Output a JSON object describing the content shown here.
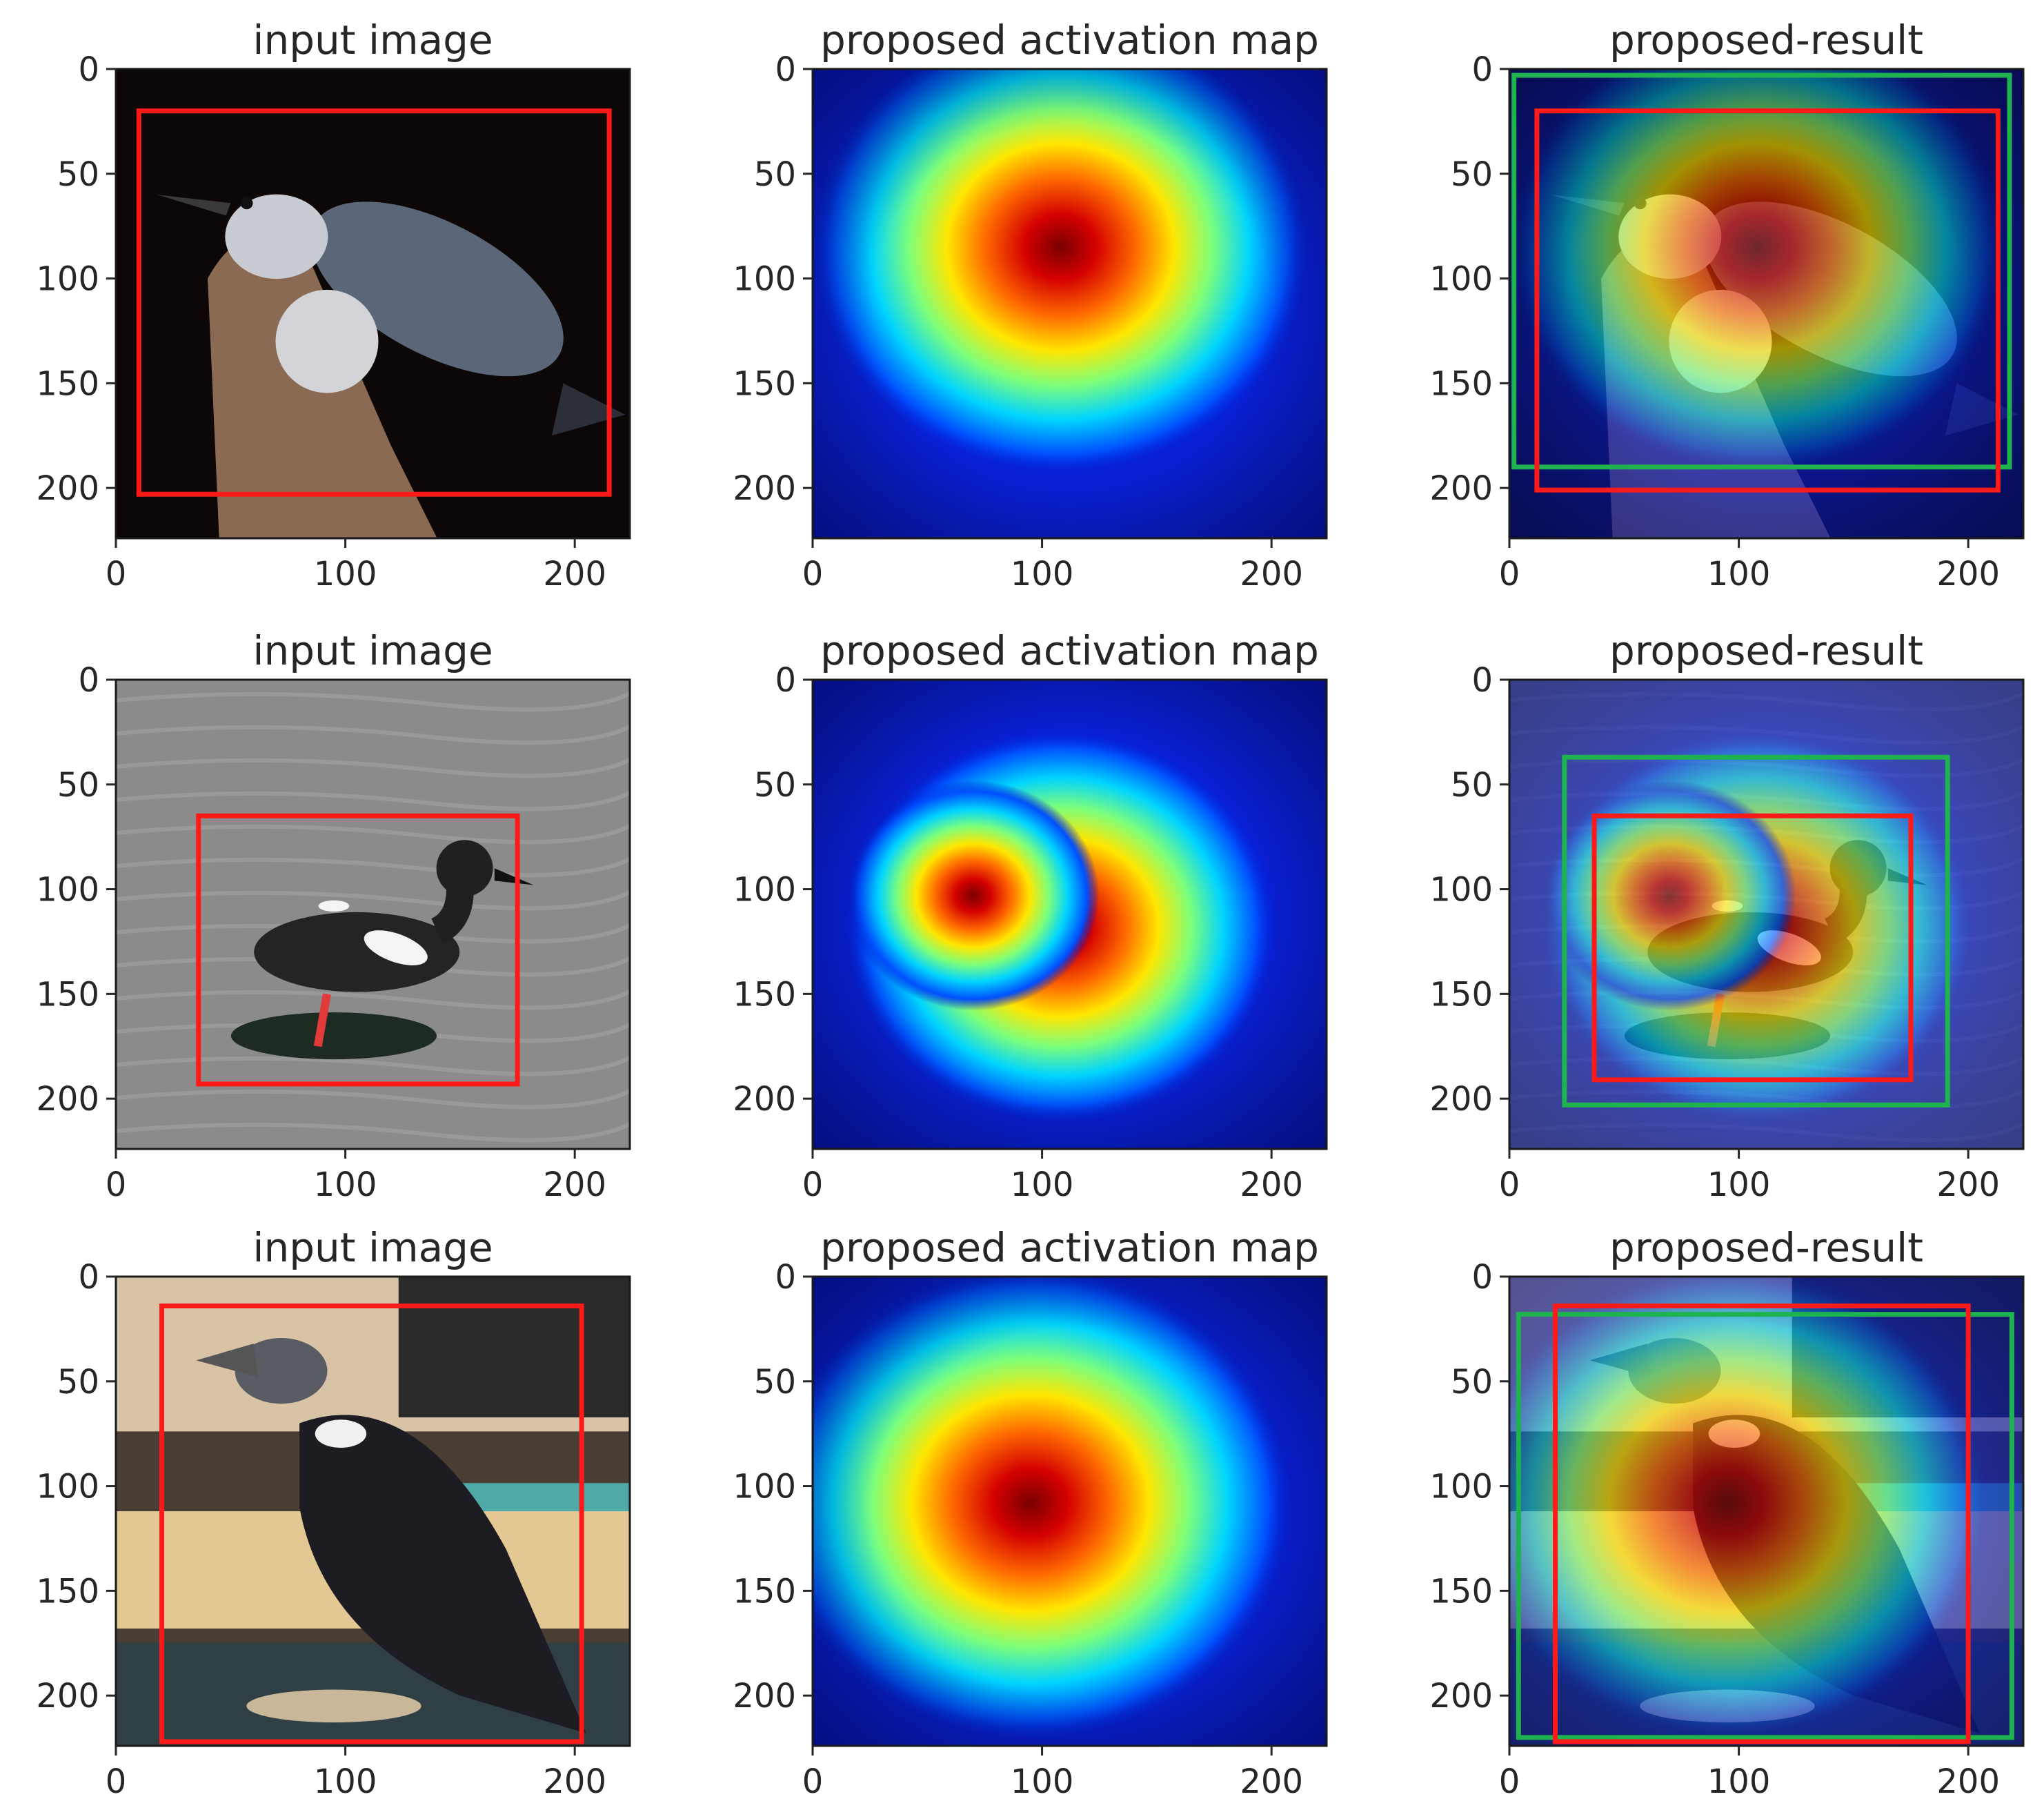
{
  "figure": {
    "axis": {
      "x_ticks": [
        0,
        100,
        200
      ],
      "y_ticks": [
        0,
        50,
        100,
        150,
        200
      ],
      "xlim": [
        0,
        224
      ],
      "ylim": [
        224,
        0
      ]
    },
    "colors": {
      "ground_truth_box": "#ff1a1a",
      "predicted_box": "#1fb34f",
      "frame": "#1a1a1a"
    },
    "rows": [
      {
        "panels": [
          {
            "kind": "photo",
            "title": "input image",
            "subject": "nuthatch",
            "boxes": [
              {
                "role": "ground_truth",
                "x0": 10,
                "y0": 20,
                "x1": 215,
                "y1": 203
              }
            ]
          },
          {
            "kind": "heatmap",
            "title": "proposed activation map",
            "hotspots": [
              {
                "x": 108,
                "y": 85,
                "r": 110
              }
            ],
            "boxes": []
          },
          {
            "kind": "overlay",
            "title": "proposed-result",
            "subject": "nuthatch",
            "hotspots": [
              {
                "x": 108,
                "y": 85,
                "r": 110
              }
            ],
            "boxes": [
              {
                "role": "predicted",
                "x0": 2,
                "y0": 3,
                "x1": 218,
                "y1": 190
              },
              {
                "role": "ground_truth",
                "x0": 12,
                "y0": 20,
                "x1": 213,
                "y1": 201
              }
            ]
          }
        ]
      },
      {
        "panels": [
          {
            "kind": "photo",
            "title": "input image",
            "subject": "guillemot",
            "boxes": [
              {
                "role": "ground_truth",
                "x0": 36,
                "y0": 65,
                "x1": 175,
                "y1": 193
              }
            ]
          },
          {
            "kind": "heatmap",
            "title": "proposed activation map",
            "hotspots": [
              {
                "x": 108,
                "y": 118,
                "r": 95
              },
              {
                "x": 70,
                "y": 103,
                "r": 55
              }
            ],
            "boxes": []
          },
          {
            "kind": "overlay",
            "title": "proposed-result",
            "subject": "guillemot",
            "hotspots": [
              {
                "x": 108,
                "y": 118,
                "r": 95
              },
              {
                "x": 70,
                "y": 103,
                "r": 55
              }
            ],
            "boxes": [
              {
                "role": "predicted",
                "x0": 24,
                "y0": 37,
                "x1": 191,
                "y1": 203
              },
              {
                "role": "ground_truth",
                "x0": 37,
                "y0": 65,
                "x1": 175,
                "y1": 191
              }
            ]
          }
        ]
      },
      {
        "panels": [
          {
            "kind": "photo",
            "title": "input image",
            "subject": "crow",
            "boxes": [
              {
                "role": "ground_truth",
                "x0": 20,
                "y0": 14,
                "x1": 203,
                "y1": 222
              }
            ]
          },
          {
            "kind": "heatmap",
            "title": "proposed activation map",
            "hotspots": [
              {
                "x": 95,
                "y": 108,
                "r": 115
              }
            ],
            "boxes": []
          },
          {
            "kind": "overlay",
            "title": "proposed-result",
            "subject": "crow",
            "hotspots": [
              {
                "x": 95,
                "y": 108,
                "r": 115
              }
            ],
            "boxes": [
              {
                "role": "predicted",
                "x0": 4,
                "y0": 18,
                "x1": 219,
                "y1": 220
              },
              {
                "role": "ground_truth",
                "x0": 20,
                "y0": 14,
                "x1": 200,
                "y1": 222
              }
            ]
          }
        ]
      }
    ]
  }
}
